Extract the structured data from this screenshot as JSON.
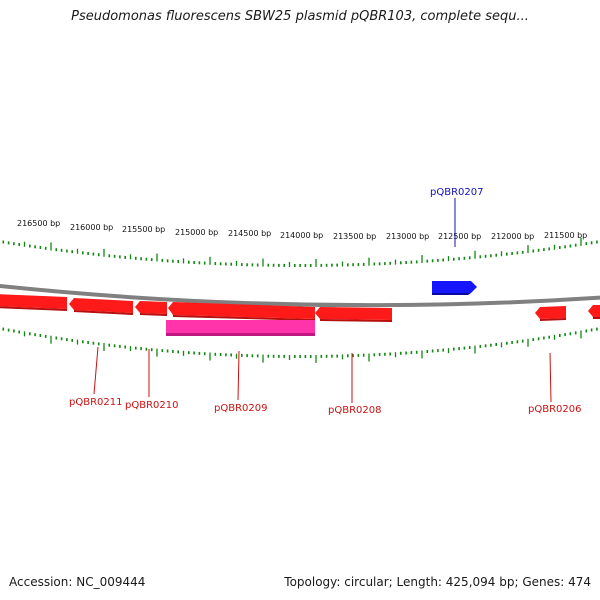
{
  "title": "Pseudomonas fluorescens SBW25 plasmid pQBR103, complete sequ...",
  "footer": {
    "accession": "Accession: NC_009444",
    "summary": "Topology: circular; Length: 425,094 bp; Genes: 474"
  },
  "colors": {
    "backbone": "#808080",
    "ticks": "#118811",
    "gene_red": "#ff1a1a",
    "gene_pink": "#ff33aa",
    "gene_blue": "#1515ff",
    "label_red": "#cc1111",
    "label_blue": "#1111bb"
  },
  "coordinate_labels": [
    "216500 bp",
    "216000 bp",
    "215500 bp",
    "215000 bp",
    "214500 bp",
    "214000 bp",
    "213500 bp",
    "213000 bp",
    "212500 bp",
    "212000 bp",
    "211500 bp"
  ],
  "gene_labels": {
    "pQBR0207": "pQBR0207",
    "pQBR0206": "pQBR0206",
    "pQBR0208": "pQBR0208",
    "pQBR0209": "pQBR0209",
    "pQBR0210": "pQBR0210",
    "pQBR0211": "pQBR0211"
  }
}
